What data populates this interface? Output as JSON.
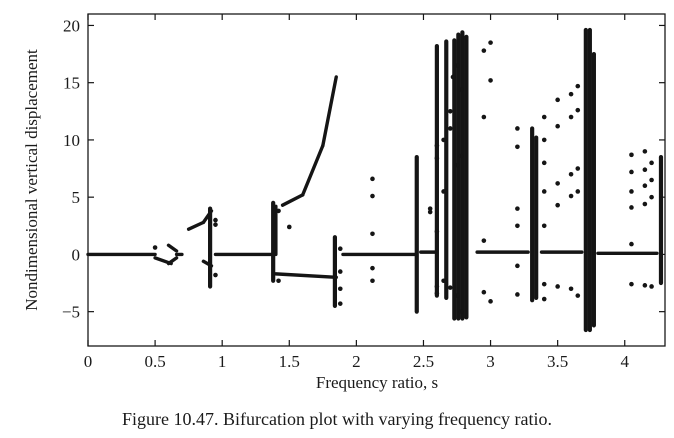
{
  "caption": "Figure 10.47. Bifurcation plot with varying frequency ratio.",
  "chart_data": {
    "type": "scatter",
    "title": "",
    "xlabel": "Frequency ratio, s",
    "ylabel": "Nondimensional vertical displacement",
    "xlim": [
      0,
      4.3
    ],
    "ylim": [
      -8,
      21
    ],
    "xticks": [
      0,
      0.5,
      1,
      1.5,
      2,
      2.5,
      3,
      3.5,
      4
    ],
    "xtick_labels": [
      "0",
      "0.5",
      "1",
      "1.5",
      "2",
      "2.5",
      "3",
      "3.5",
      "4"
    ],
    "yticks": [
      -5,
      0,
      5,
      10,
      15,
      20
    ],
    "ytick_labels": [
      "−5",
      "0",
      "5",
      "10",
      "15",
      "20"
    ],
    "grid": false,
    "series": [
      {
        "segments": [
          {
            "from": [
              0.0,
              0.0
            ],
            "to": [
              0.5,
              0.0
            ]
          },
          {
            "from": [
              0.5,
              -0.3
            ],
            "to": [
              0.62,
              -0.8
            ]
          },
          {
            "from": [
              0.6,
              0.8
            ],
            "to": [
              0.66,
              0.3
            ]
          },
          {
            "from": [
              0.6,
              -0.8
            ],
            "to": [
              0.66,
              -0.3
            ]
          },
          {
            "from": [
              0.66,
              0.0
            ],
            "to": [
              0.7,
              0.0
            ]
          },
          {
            "from": [
              0.75,
              2.2
            ],
            "to": [
              0.86,
              2.8
            ]
          },
          {
            "from": [
              0.86,
              2.8
            ],
            "to": [
              0.92,
              3.8
            ]
          },
          {
            "from": [
              0.86,
              -0.6
            ],
            "to": [
              0.92,
              -1.0
            ]
          },
          {
            "from": [
              0.95,
              0.0
            ],
            "to": [
              1.38,
              0.0
            ]
          },
          {
            "from": [
              1.4,
              0.0
            ],
            "to": [
              1.4,
              4.2
            ]
          },
          {
            "from": [
              1.45,
              4.3
            ],
            "to": [
              1.6,
              5.2
            ]
          },
          {
            "from": [
              1.6,
              5.2
            ],
            "to": [
              1.75,
              9.5
            ]
          },
          {
            "from": [
              1.75,
              9.5
            ],
            "to": [
              1.85,
              15.5
            ]
          },
          {
            "from": [
              1.4,
              -1.7
            ],
            "to": [
              1.85,
              -2.0
            ]
          },
          {
            "from": [
              1.9,
              0.0
            ],
            "to": [
              2.45,
              0.0
            ]
          },
          {
            "from": [
              2.48,
              0.2
            ],
            "to": [
              2.6,
              0.2
            ]
          },
          {
            "from": [
              2.9,
              0.2
            ],
            "to": [
              3.28,
              0.2
            ]
          },
          {
            "from": [
              3.38,
              0.2
            ],
            "to": [
              3.68,
              0.2
            ]
          },
          {
            "from": [
              3.8,
              0.1
            ],
            "to": [
              4.24,
              0.1
            ]
          }
        ],
        "points": [
          [
            0.5,
            0.6
          ],
          [
            0.95,
            2.6
          ],
          [
            0.95,
            3.0
          ],
          [
            0.95,
            -1.8
          ],
          [
            1.42,
            3.8
          ],
          [
            1.5,
            2.4
          ],
          [
            1.42,
            -2.3
          ],
          [
            1.88,
            0.5
          ],
          [
            1.88,
            -1.5
          ],
          [
            1.88,
            -3.0
          ],
          [
            1.88,
            -4.3
          ],
          [
            2.12,
            6.6
          ],
          [
            2.12,
            5.1
          ],
          [
            2.12,
            1.8
          ],
          [
            2.12,
            -1.2
          ],
          [
            2.12,
            -2.3
          ],
          [
            2.55,
            4.0
          ],
          [
            2.55,
            3.7
          ],
          [
            2.6,
            8.4
          ],
          [
            2.6,
            9.5
          ],
          [
            2.6,
            2.0
          ],
          [
            2.65,
            10.0
          ],
          [
            2.65,
            5.5
          ],
          [
            2.7,
            11.0
          ],
          [
            2.7,
            12.5
          ],
          [
            2.72,
            15.5
          ],
          [
            2.75,
            16.5
          ],
          [
            2.75,
            7.8
          ],
          [
            2.78,
            8.6
          ],
          [
            2.78,
            14.4
          ],
          [
            2.6,
            -2.8
          ],
          [
            2.6,
            -3.4
          ],
          [
            2.65,
            -2.3
          ],
          [
            2.7,
            -2.9
          ],
          [
            2.75,
            -3.6
          ],
          [
            2.78,
            -5.0
          ],
          [
            2.95,
            17.8
          ],
          [
            2.95,
            12.0
          ],
          [
            3.0,
            18.5
          ],
          [
            3.0,
            15.2
          ],
          [
            2.95,
            1.2
          ],
          [
            2.95,
            -3.3
          ],
          [
            3.0,
            -4.1
          ],
          [
            3.2,
            11.0
          ],
          [
            3.2,
            9.4
          ],
          [
            3.2,
            4.0
          ],
          [
            3.2,
            2.5
          ],
          [
            3.2,
            -1.0
          ],
          [
            3.2,
            -3.5
          ],
          [
            3.4,
            10.0
          ],
          [
            3.4,
            12.0
          ],
          [
            3.4,
            8.0
          ],
          [
            3.4,
            5.5
          ],
          [
            3.4,
            2.5
          ],
          [
            3.4,
            -2.6
          ],
          [
            3.4,
            -3.9
          ],
          [
            3.5,
            13.5
          ],
          [
            3.5,
            11.2
          ],
          [
            3.5,
            6.2
          ],
          [
            3.5,
            4.3
          ],
          [
            3.5,
            -2.8
          ],
          [
            3.6,
            14.0
          ],
          [
            3.6,
            12.0
          ],
          [
            3.6,
            7.0
          ],
          [
            3.6,
            5.1
          ],
          [
            3.6,
            -3.0
          ],
          [
            3.65,
            14.7
          ],
          [
            3.65,
            12.6
          ],
          [
            3.65,
            7.5
          ],
          [
            3.65,
            5.5
          ],
          [
            3.65,
            -3.6
          ],
          [
            4.05,
            8.7
          ],
          [
            4.05,
            7.2
          ],
          [
            4.05,
            5.5
          ],
          [
            4.05,
            4.1
          ],
          [
            4.05,
            0.9
          ],
          [
            4.05,
            -2.6
          ],
          [
            4.15,
            9.0
          ],
          [
            4.15,
            7.4
          ],
          [
            4.15,
            6.0
          ],
          [
            4.15,
            4.4
          ],
          [
            4.15,
            -2.7
          ],
          [
            4.2,
            8.0
          ],
          [
            4.2,
            6.5
          ],
          [
            4.2,
            5.0
          ],
          [
            4.2,
            -2.8
          ]
        ],
        "bands": [
          {
            "x": 0.91,
            "ymin": -2.8,
            "ymax": 4.0
          },
          {
            "x": 1.38,
            "ymin": -2.3,
            "ymax": 4.5
          },
          {
            "x": 1.84,
            "ymin": -4.5,
            "ymax": 1.5
          },
          {
            "x": 2.45,
            "ymin": -5.0,
            "ymax": 8.5
          },
          {
            "x": 2.6,
            "ymin": -3.6,
            "ymax": 18.2
          },
          {
            "x": 2.67,
            "ymin": -3.8,
            "ymax": 18.6
          },
          {
            "x": 2.73,
            "ymin": -5.6,
            "ymax": 18.7
          },
          {
            "x": 2.76,
            "ymin": -5.6,
            "ymax": 19.2
          },
          {
            "x": 2.79,
            "ymin": -5.6,
            "ymax": 19.4
          },
          {
            "x": 2.82,
            "ymin": -5.5,
            "ymax": 19.0
          },
          {
            "x": 3.31,
            "ymin": -4.0,
            "ymax": 11.0
          },
          {
            "x": 3.34,
            "ymin": -3.8,
            "ymax": 10.2
          },
          {
            "x": 3.71,
            "ymin": -6.6,
            "ymax": 19.6
          },
          {
            "x": 3.74,
            "ymin": -6.6,
            "ymax": 19.6
          },
          {
            "x": 3.77,
            "ymin": -6.2,
            "ymax": 17.5
          },
          {
            "x": 4.27,
            "ymin": -2.5,
            "ymax": 8.5
          }
        ]
      }
    ]
  }
}
